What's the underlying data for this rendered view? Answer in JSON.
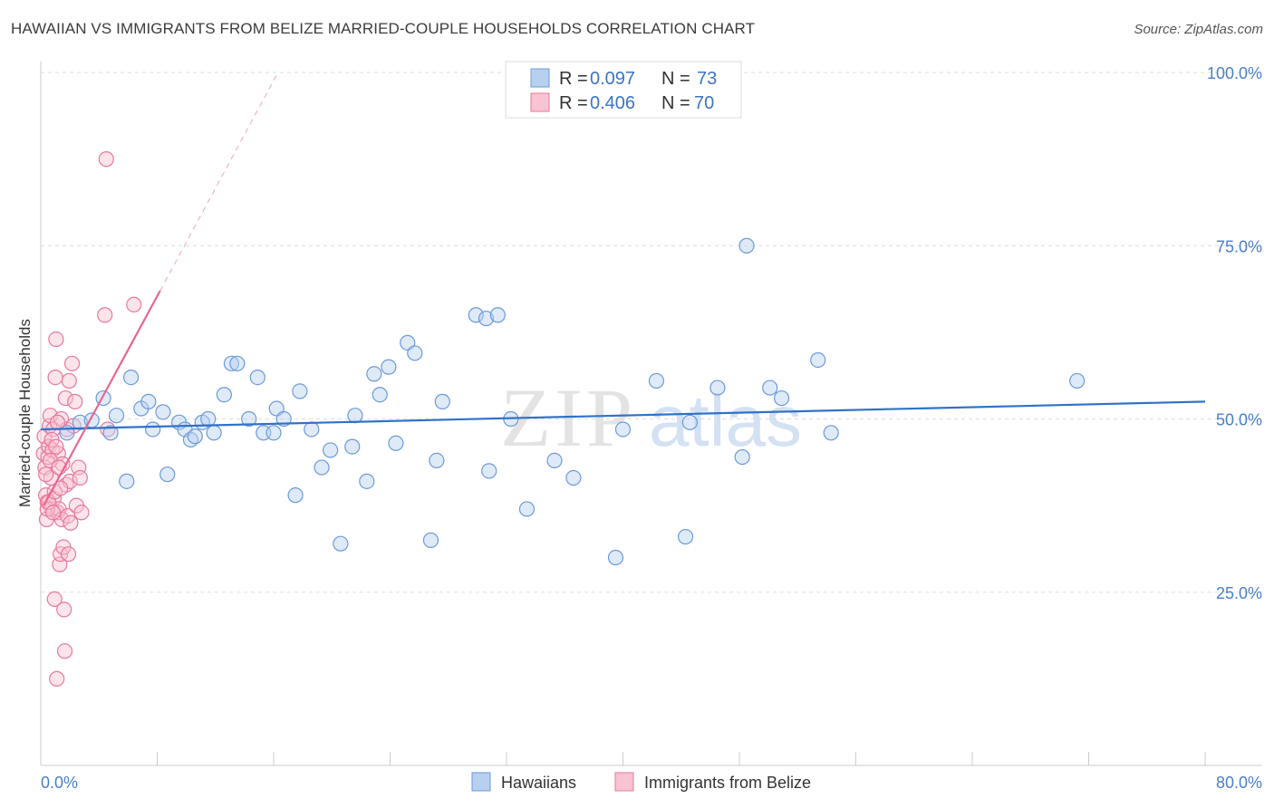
{
  "header": {
    "title": "HAWAIIAN VS IMMIGRANTS FROM BELIZE MARRIED-COUPLE HOUSEHOLDS CORRELATION CHART",
    "source": "Source: ZipAtlas.com"
  },
  "watermark": {
    "zip": "ZIP",
    "atlas": "atlas"
  },
  "legend": {
    "r_label": "R =",
    "n_label": "N =",
    "items": [
      {
        "r": "0.097",
        "n": "73",
        "color": "#a9c9ef"
      },
      {
        "r": "0.406",
        "n": "70",
        "color": "#f7b6c8"
      }
    ]
  },
  "bottom_legend": [
    "Hawaiians",
    "Immigrants from Belize"
  ],
  "colors": {
    "blue_fill": "#b7d0f0",
    "blue_stroke": "#6b9ad8",
    "blue_line": "#2f72c9",
    "pink_fill": "#f8c3d2",
    "pink_stroke": "#e8799b",
    "pink_line": "#e8668f",
    "tick_text": "#4a7fc6",
    "grid": "#dddddd"
  },
  "chart_data": {
    "type": "scatter",
    "title": "HAWAIIAN VS IMMIGRANTS FROM BELIZE MARRIED-COUPLE HOUSEHOLDS CORRELATION CHART",
    "xlabel": "",
    "ylabel": "Married-couple Households",
    "xlim": [
      0,
      80
    ],
    "ylim": [
      0,
      100
    ],
    "x_tick_labels": [
      "0.0%",
      "80.0%"
    ],
    "y_ticks": [
      25,
      50,
      75,
      100
    ],
    "y_tick_labels": [
      "25.0%",
      "50.0%",
      "75.0%",
      "100.0%"
    ],
    "grid": true,
    "series": [
      {
        "name": "Hawaiians",
        "r": 0.097,
        "n": 73,
        "trend": {
          "x": [
            0,
            80
          ],
          "y": [
            48.5,
            52.5
          ]
        },
        "points": [
          [
            1.8,
            48
          ],
          [
            2.7,
            49.5
          ],
          [
            3.5,
            49.8
          ],
          [
            4.3,
            53
          ],
          [
            4.8,
            48
          ],
          [
            5.2,
            50.5
          ],
          [
            5.9,
            41
          ],
          [
            6.2,
            56
          ],
          [
            6.9,
            51.5
          ],
          [
            7.4,
            52.5
          ],
          [
            7.7,
            48.5
          ],
          [
            8.4,
            51
          ],
          [
            8.7,
            42
          ],
          [
            9.5,
            49.5
          ],
          [
            9.9,
            48.5
          ],
          [
            10.3,
            47
          ],
          [
            10.6,
            47.5
          ],
          [
            11.1,
            49.5
          ],
          [
            11.5,
            50
          ],
          [
            11.9,
            48
          ],
          [
            12.6,
            53.5
          ],
          [
            13.1,
            58
          ],
          [
            13.5,
            58
          ],
          [
            14.3,
            50
          ],
          [
            14.9,
            56
          ],
          [
            15.3,
            48
          ],
          [
            16,
            48
          ],
          [
            16.2,
            51.5
          ],
          [
            16.7,
            50
          ],
          [
            17.5,
            39
          ],
          [
            17.8,
            54
          ],
          [
            18.6,
            48.5
          ],
          [
            19.3,
            43
          ],
          [
            19.9,
            45.5
          ],
          [
            20.6,
            32
          ],
          [
            21.4,
            46
          ],
          [
            21.6,
            50.5
          ],
          [
            22.4,
            41
          ],
          [
            22.9,
            56.5
          ],
          [
            23.3,
            53.5
          ],
          [
            23.9,
            57.5
          ],
          [
            24.4,
            46.5
          ],
          [
            25.2,
            61
          ],
          [
            25.7,
            59.5
          ],
          [
            26.8,
            32.5
          ],
          [
            27.2,
            44
          ],
          [
            27.6,
            52.5
          ],
          [
            29.9,
            65
          ],
          [
            30.6,
            64.5
          ],
          [
            30.8,
            42.5
          ],
          [
            31.4,
            65
          ],
          [
            32.3,
            50
          ],
          [
            33.4,
            37
          ],
          [
            35.3,
            44
          ],
          [
            36.6,
            41.5
          ],
          [
            39.5,
            30
          ],
          [
            40,
            48.5
          ],
          [
            42.3,
            55.5
          ],
          [
            44.3,
            33
          ],
          [
            44.6,
            49.5
          ],
          [
            46.5,
            54.5
          ],
          [
            48.2,
            44.5
          ],
          [
            48.5,
            75
          ],
          [
            50.1,
            54.5
          ],
          [
            50.9,
            53
          ],
          [
            53.4,
            58.5
          ],
          [
            54.3,
            48
          ],
          [
            71.2,
            55.5
          ]
        ]
      },
      {
        "name": "Immigrants from Belize",
        "r": 0.406,
        "n": 70,
        "trend": {
          "x": [
            0.2,
            8.2
          ],
          "y": [
            37.5,
            68.5
          ],
          "dashed_to": {
            "x": 16.3,
            "y": 100
          }
        },
        "points": [
          [
            0.2,
            45
          ],
          [
            0.25,
            47.5
          ],
          [
            0.3,
            43
          ],
          [
            0.35,
            39
          ],
          [
            0.4,
            35.5
          ],
          [
            0.45,
            38
          ],
          [
            0.5,
            44.5
          ],
          [
            0.55,
            46
          ],
          [
            0.6,
            49
          ],
          [
            0.65,
            50.5
          ],
          [
            0.7,
            41.5
          ],
          [
            0.75,
            37
          ],
          [
            0.8,
            45.5
          ],
          [
            0.85,
            48.5
          ],
          [
            0.9,
            38.5
          ],
          [
            0.95,
            24
          ],
          [
            1.0,
            56
          ],
          [
            1.05,
            61.5
          ],
          [
            1.1,
            12.5
          ],
          [
            1.15,
            36.5
          ],
          [
            1.2,
            45
          ],
          [
            1.25,
            37
          ],
          [
            1.3,
            29
          ],
          [
            1.35,
            30.5
          ],
          [
            1.4,
            50
          ],
          [
            1.45,
            35.5
          ],
          [
            1.5,
            43.5
          ],
          [
            1.55,
            31.5
          ],
          [
            1.6,
            22.5
          ],
          [
            1.65,
            16.5
          ],
          [
            1.7,
            53
          ],
          [
            1.75,
            40.5
          ],
          [
            1.8,
            48.5
          ],
          [
            1.85,
            36
          ],
          [
            1.9,
            30.5
          ],
          [
            1.95,
            55.5
          ],
          [
            2.0,
            41
          ],
          [
            2.05,
            35
          ],
          [
            2.15,
            58
          ],
          [
            2.25,
            49
          ],
          [
            2.35,
            52.5
          ],
          [
            2.45,
            37.5
          ],
          [
            2.6,
            43
          ],
          [
            2.7,
            41.5
          ],
          [
            2.8,
            36.5
          ],
          [
            4.5,
            87.5
          ],
          [
            4.6,
            48.5
          ],
          [
            4.4,
            65
          ],
          [
            6.4,
            66.5
          ],
          [
            0.35,
            42
          ],
          [
            0.45,
            37
          ],
          [
            0.55,
            38
          ],
          [
            0.65,
            44
          ],
          [
            0.75,
            47
          ],
          [
            0.85,
            36.5
          ],
          [
            0.95,
            39.5
          ],
          [
            1.05,
            46
          ],
          [
            1.15,
            49.5
          ],
          [
            1.25,
            43
          ],
          [
            1.35,
            40
          ]
        ]
      }
    ]
  }
}
